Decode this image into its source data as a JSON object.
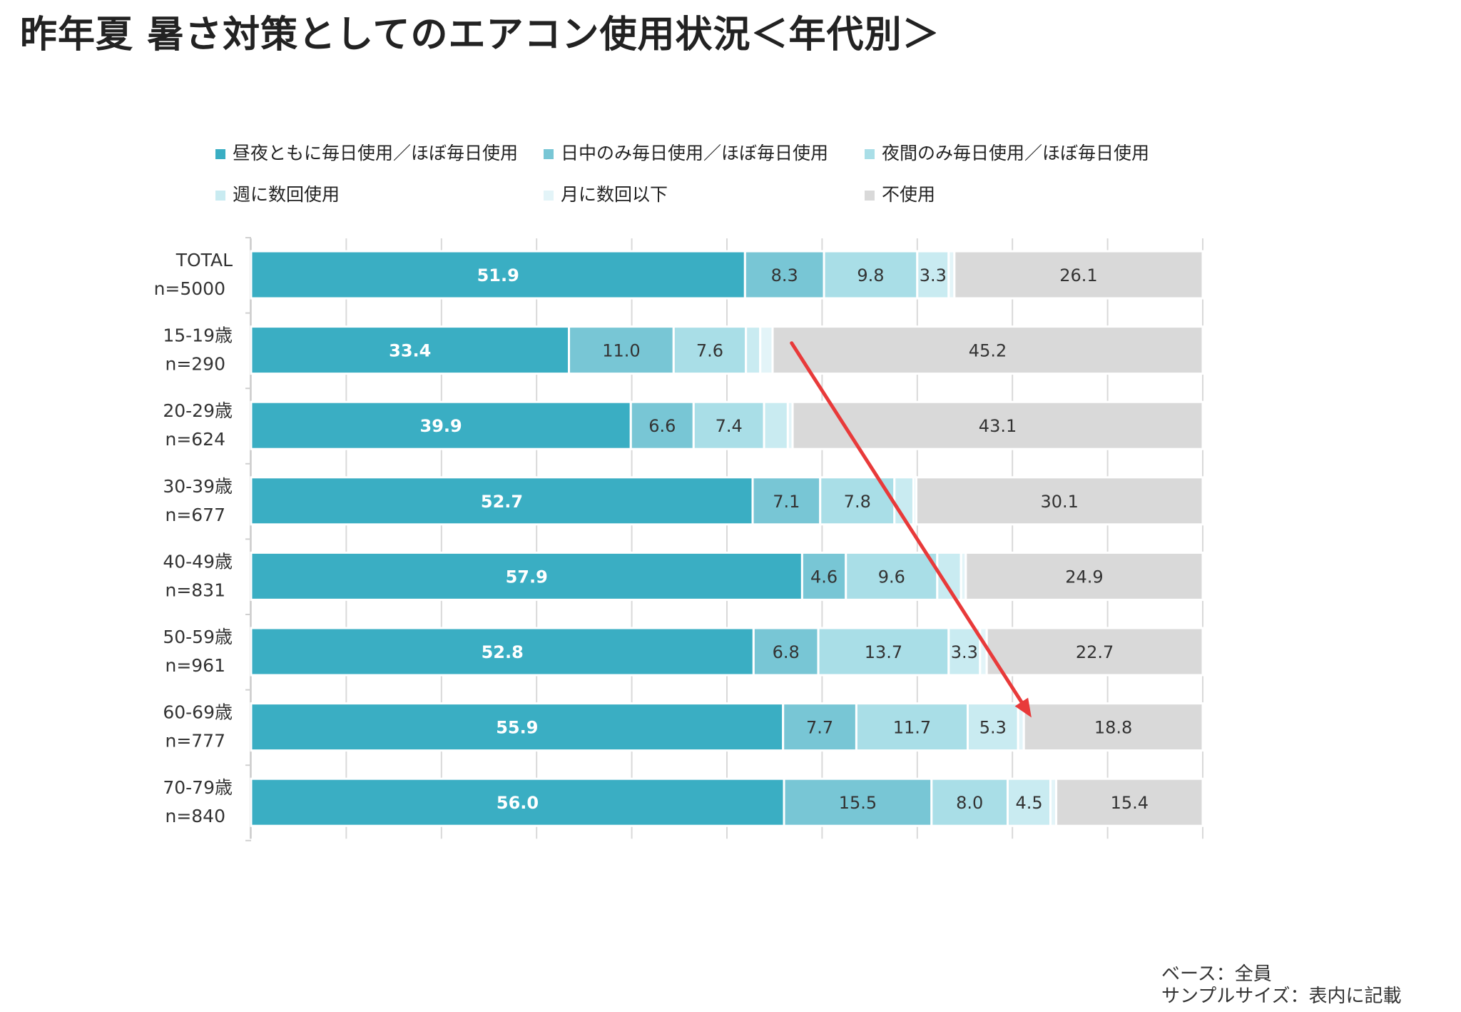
{
  "title": "昨年夏 暑さ対策としてのエアコン使用状況＜年代別＞",
  "footnote": {
    "base": "ベース：全員",
    "sample": "サンプルサイズ：表内に記載"
  },
  "chart_data": {
    "type": "bar",
    "orientation": "horizontal",
    "stacked": true,
    "stack_total": 100,
    "title": "昨年夏 暑さ対策としてのエアコン使用状況＜年代別＞",
    "xlabel": "",
    "ylabel": "",
    "xlim": [
      0,
      100
    ],
    "grid": true,
    "legend_position": "top",
    "categories": [
      {
        "label": "TOTAL",
        "n": "n=5000"
      },
      {
        "label": "15-19歳",
        "n": "n=290"
      },
      {
        "label": "20-29歳",
        "n": "n=624"
      },
      {
        "label": "30-39歳",
        "n": "n=677"
      },
      {
        "label": "40-49歳",
        "n": "n=831"
      },
      {
        "label": "50-59歳",
        "n": "n=961"
      },
      {
        "label": "60-69歳",
        "n": "n=777"
      },
      {
        "label": "70-79歳",
        "n": "n=840"
      }
    ],
    "series": [
      {
        "name": "昼夜ともに毎日使用／ほぼ毎日使用",
        "color": "#3AAEC3",
        "label_color": "#ffffff",
        "label_bold": true,
        "values": [
          51.9,
          33.4,
          39.9,
          52.7,
          57.9,
          52.8,
          55.9,
          56.0
        ]
      },
      {
        "name": "日中のみ毎日使用／ほぼ毎日使用",
        "color": "#78C6D5",
        "label_color": "#333333",
        "label_bold": false,
        "values": [
          8.3,
          11.0,
          6.6,
          7.1,
          4.6,
          6.8,
          7.7,
          15.5
        ]
      },
      {
        "name": "夜間のみ毎日使用／ほぼ毎日使用",
        "color": "#A9DEE7",
        "label_color": "#333333",
        "label_bold": false,
        "values": [
          9.8,
          7.6,
          7.4,
          7.8,
          9.6,
          13.7,
          11.7,
          8.0
        ]
      },
      {
        "name": "週に数回使用",
        "color": "#C9EBF1",
        "label_color": "#333333",
        "label_bold": false,
        "values": [
          3.3,
          1.5,
          2.5,
          2.0,
          2.5,
          3.3,
          5.3,
          4.5
        ]
      },
      {
        "name": "月に数回以下",
        "color": "#E3F4F8",
        "label_color": "#333333",
        "label_bold": false,
        "values": [
          0.6,
          1.3,
          0.5,
          0.3,
          0.5,
          0.7,
          0.6,
          0.6
        ]
      },
      {
        "name": "不使用",
        "color": "#D9D9D9",
        "label_color": "#333333",
        "label_bold": false,
        "values": [
          26.1,
          45.2,
          43.1,
          30.1,
          24.9,
          22.7,
          18.8,
          15.4
        ]
      }
    ],
    "data_labels": [
      [
        "51.9",
        "8.3",
        "9.8",
        "3.3",
        "",
        "26.1"
      ],
      [
        "33.4",
        "11.0",
        "7.6",
        "",
        "",
        "45.2"
      ],
      [
        "39.9",
        "6.6",
        "7.4",
        "",
        "",
        "43.1"
      ],
      [
        "52.7",
        "7.1",
        "7.8",
        "",
        "",
        "30.1"
      ],
      [
        "57.9",
        "4.6",
        "9.6",
        "",
        "",
        "24.9"
      ],
      [
        "52.8",
        "6.8",
        "13.7",
        "3.3",
        "",
        "22.7"
      ],
      [
        "55.9",
        "7.7",
        "11.7",
        "5.3",
        "",
        "18.8"
      ],
      [
        "56.0",
        "15.5",
        "8.0",
        "4.5",
        "",
        "15.4"
      ]
    ],
    "annotations": [
      {
        "type": "arrow",
        "color": "#E83A3A",
        "from": {
          "category": "15-19歳",
          "x": 56.8
        },
        "to": {
          "category": "60-69歳",
          "x": 82.0
        }
      }
    ]
  }
}
